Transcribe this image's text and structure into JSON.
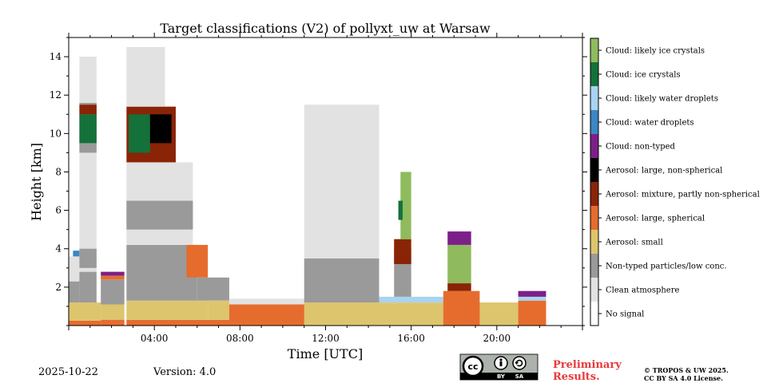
{
  "chart_data": {
    "type": "heatmap",
    "title": "Target classifications (V2) of pollyxt_uw at Warsaw",
    "xlabel": "Time [UTC]",
    "ylabel": "Height [km]",
    "xlim": [
      0,
      24
    ],
    "ylim": [
      0,
      15
    ],
    "x_tick_labels": [
      {
        "value": 4,
        "label": "04:00"
      },
      {
        "value": 8,
        "label": "08:00"
      },
      {
        "value": 12,
        "label": "12:00"
      },
      {
        "value": 16,
        "label": "16:00"
      },
      {
        "value": 20,
        "label": "20:00"
      }
    ],
    "y_ticks": [
      2,
      4,
      6,
      8,
      10,
      12,
      14
    ],
    "legend": [
      {
        "label": "Cloud: likely ice crystals",
        "color": "#8fbb5e"
      },
      {
        "label": "Cloud: ice crystals",
        "color": "#14713a"
      },
      {
        "label": "Cloud: likely water droplets",
        "color": "#a9d3f0"
      },
      {
        "label": "Cloud: water droplets",
        "color": "#3b86c5"
      },
      {
        "label": "Cloud: non-typed",
        "color": "#7c2089"
      },
      {
        "label": "Aerosol: large, non-spherical",
        "color": "#000000"
      },
      {
        "label": "Aerosol: mixture, partly non-spherical",
        "color": "#8a2406"
      },
      {
        "label": "Aerosol: large, spherical",
        "color": "#e66c2e"
      },
      {
        "label": "Aerosol: small",
        "color": "#ddc56d"
      },
      {
        "label": "Non-typed particles/low conc.",
        "color": "#9a9a9a"
      },
      {
        "label": "Clean atmosphere",
        "color": "#e2e2e2"
      },
      {
        "label": "No signal",
        "color": "#ffffff"
      }
    ],
    "regions": [
      {
        "cls": "Aerosol: large, spherical",
        "t0": 0.0,
        "t1": 1.5,
        "h0": 0.0,
        "h1": 0.25
      },
      {
        "cls": "Aerosol: small",
        "t0": 0.0,
        "t1": 1.5,
        "h0": 0.25,
        "h1": 1.2
      },
      {
        "cls": "Non-typed particles/low conc.",
        "t0": 0.0,
        "t1": 0.5,
        "h0": 1.2,
        "h1": 2.3
      },
      {
        "cls": "Clean atmosphere",
        "t0": 0.0,
        "t1": 0.5,
        "h0": 2.3,
        "h1": 3.6
      },
      {
        "cls": "Cloud: water droplets",
        "t0": 0.2,
        "t1": 0.5,
        "h0": 3.6,
        "h1": 3.9
      },
      {
        "cls": "Non-typed particles/low conc.",
        "t0": 0.5,
        "t1": 1.3,
        "h0": 1.2,
        "h1": 2.8
      },
      {
        "cls": "Clean atmosphere",
        "t0": 0.5,
        "t1": 1.3,
        "h0": 2.8,
        "h1": 11.6
      },
      {
        "cls": "Non-typed particles/low conc.",
        "t0": 0.5,
        "t1": 1.3,
        "h0": 3.0,
        "h1": 4.0
      },
      {
        "cls": "Non-typed particles/low conc.",
        "t0": 0.5,
        "t1": 1.3,
        "h0": 9.0,
        "h1": 11.6
      },
      {
        "cls": "Cloud: ice crystals",
        "t0": 0.5,
        "t1": 1.3,
        "h0": 9.5,
        "h1": 11.0
      },
      {
        "cls": "Aerosol: mixture, partly non-spherical",
        "t0": 0.5,
        "t1": 1.3,
        "h0": 11.0,
        "h1": 11.5
      },
      {
        "cls": "Clean atmosphere",
        "t0": 0.5,
        "t1": 1.3,
        "h0": 11.6,
        "h1": 14.0
      },
      {
        "cls": "Aerosol: small",
        "t0": 1.5,
        "t1": 2.6,
        "h0": 0.3,
        "h1": 1.1
      },
      {
        "cls": "Aerosol: large, spherical",
        "t0": 1.5,
        "t1": 2.6,
        "h0": 0.0,
        "h1": 0.3
      },
      {
        "cls": "Non-typed particles/low conc.",
        "t0": 1.5,
        "t1": 2.6,
        "h0": 1.1,
        "h1": 2.4
      },
      {
        "cls": "Aerosol: large, spherical",
        "t0": 1.5,
        "t1": 2.6,
        "h0": 2.4,
        "h1": 2.6
      },
      {
        "cls": "Cloud: non-typed",
        "t0": 1.5,
        "t1": 2.6,
        "h0": 2.6,
        "h1": 2.8
      },
      {
        "cls": "Aerosol: large, spherical",
        "t0": 2.7,
        "t1": 8.0,
        "h0": 0.0,
        "h1": 0.3
      },
      {
        "cls": "Aerosol: small",
        "t0": 2.7,
        "t1": 6.5,
        "h0": 0.3,
        "h1": 1.3
      },
      {
        "cls": "Non-typed particles/low conc.",
        "t0": 2.7,
        "t1": 6.0,
        "h0": 1.3,
        "h1": 4.2
      },
      {
        "cls": "Clean atmosphere",
        "t0": 2.7,
        "t1": 5.8,
        "h0": 4.2,
        "h1": 8.5
      },
      {
        "cls": "Non-typed particles/low conc.",
        "t0": 2.7,
        "t1": 5.8,
        "h0": 5.0,
        "h1": 6.5
      },
      {
        "cls": "Aerosol: mixture, partly non-spherical",
        "t0": 2.7,
        "t1": 5.0,
        "h0": 8.5,
        "h1": 11.4
      },
      {
        "cls": "Cloud: ice crystals",
        "t0": 2.8,
        "t1": 3.8,
        "h0": 9.0,
        "h1": 11.0
      },
      {
        "cls": "Aerosol: large, non-spherical",
        "t0": 3.8,
        "t1": 4.8,
        "h0": 9.5,
        "h1": 11.0
      },
      {
        "cls": "Clean atmosphere",
        "t0": 2.7,
        "t1": 4.5,
        "h0": 11.4,
        "h1": 14.5
      },
      {
        "cls": "Aerosol: large, spherical",
        "t0": 5.5,
        "t1": 6.5,
        "h0": 2.5,
        "h1": 4.2
      },
      {
        "cls": "Non-typed particles/low conc.",
        "t0": 6.0,
        "t1": 7.5,
        "h0": 1.3,
        "h1": 2.5
      },
      {
        "cls": "Aerosol: small",
        "t0": 6.5,
        "t1": 7.5,
        "h0": 0.3,
        "h1": 1.3
      },
      {
        "cls": "Aerosol: small",
        "t0": 7.5,
        "t1": 22.3,
        "h0": 0.0,
        "h1": 1.2
      },
      {
        "cls": "Aerosol: large, spherical",
        "t0": 7.5,
        "t1": 11.0,
        "h0": 0.0,
        "h1": 1.1
      },
      {
        "cls": "Clean atmosphere",
        "t0": 7.5,
        "t1": 11.0,
        "h0": 1.1,
        "h1": 1.4
      },
      {
        "cls": "Non-typed particles/low conc.",
        "t0": 11.0,
        "t1": 14.5,
        "h0": 1.2,
        "h1": 3.5
      },
      {
        "cls": "Clean atmosphere",
        "t0": 11.0,
        "t1": 14.5,
        "h0": 3.5,
        "h1": 11.5
      },
      {
        "cls": "Cloud: likely water droplets",
        "t0": 14.5,
        "t1": 17.5,
        "h0": 1.2,
        "h1": 1.5
      },
      {
        "cls": "Non-typed particles/low conc.",
        "t0": 15.2,
        "t1": 16.0,
        "h0": 1.5,
        "h1": 4.0
      },
      {
        "cls": "Aerosol: mixture, partly non-spherical",
        "t0": 15.2,
        "t1": 16.0,
        "h0": 3.2,
        "h1": 4.5
      },
      {
        "cls": "Cloud: likely ice crystals",
        "t0": 15.5,
        "t1": 16.0,
        "h0": 4.5,
        "h1": 8.0
      },
      {
        "cls": "Cloud: ice crystals",
        "t0": 15.4,
        "t1": 15.6,
        "h0": 5.5,
        "h1": 6.5
      },
      {
        "cls": "Aerosol: large, spherical",
        "t0": 17.5,
        "t1": 19.2,
        "h0": 0.0,
        "h1": 1.8
      },
      {
        "cls": "Aerosol: mixture, partly non-spherical",
        "t0": 17.7,
        "t1": 18.8,
        "h0": 1.8,
        "h1": 2.2
      },
      {
        "cls": "Cloud: likely ice crystals",
        "t0": 17.7,
        "t1": 18.8,
        "h0": 2.2,
        "h1": 4.2
      },
      {
        "cls": "Cloud: non-typed",
        "t0": 17.7,
        "t1": 18.8,
        "h0": 4.2,
        "h1": 4.9
      },
      {
        "cls": "Aerosol: large, spherical",
        "t0": 21.0,
        "t1": 22.3,
        "h0": 0.0,
        "h1": 1.3
      },
      {
        "cls": "Cloud: likely water droplets",
        "t0": 21.0,
        "t1": 22.3,
        "h0": 1.3,
        "h1": 1.5
      },
      {
        "cls": "Cloud: non-typed",
        "t0": 21.0,
        "t1": 22.3,
        "h0": 1.5,
        "h1": 1.8
      }
    ]
  },
  "footer": {
    "date": "2025-10-22",
    "version": "Version: 4.0",
    "preliminary_line1": "Preliminary",
    "preliminary_line2": "Results.",
    "copyright_line1": "© TROPOS & UW 2025.",
    "copyright_line2": "CC BY SA 4.0 License.",
    "license_badge": {
      "cc": "cc",
      "by": "BY",
      "sa": "SA"
    }
  }
}
